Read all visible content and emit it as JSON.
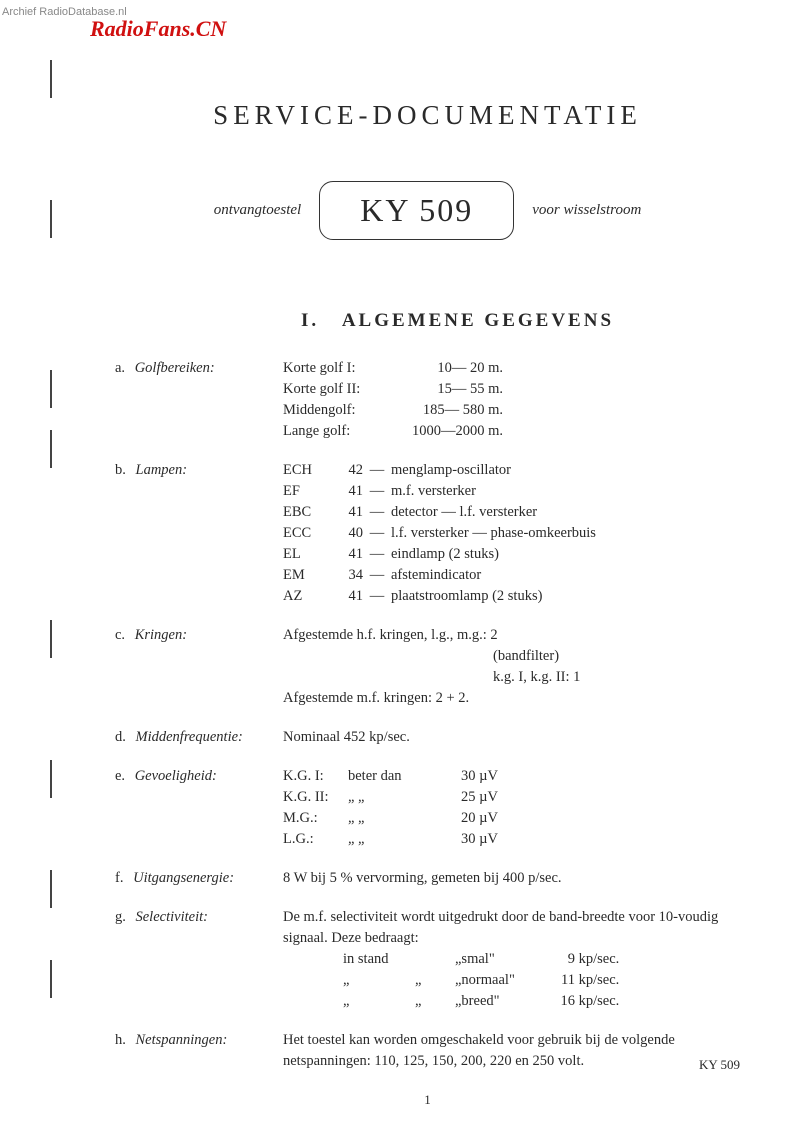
{
  "watermark_top": "Archief RadioDatabase.nl",
  "watermark_red": "RadioFans.CN",
  "title": "SERVICE-DOCUMENTATIE",
  "model_left": "ontvangtoestel",
  "model_box": "KY 509",
  "model_right": "voor wisselstroom",
  "section_num": "I.",
  "section_title": "ALGEMENE GEGEVENS",
  "specs": {
    "a": {
      "letter": "a.",
      "label": "Golfbereiken:",
      "bands": [
        {
          "name": "Korte golf I:",
          "range": "10—   20  m."
        },
        {
          "name": "Korte golf II:",
          "range": "15—   55  m."
        },
        {
          "name": "Middengolf:",
          "range": "185—  580  m."
        },
        {
          "name": "Lange golf:",
          "range": "1000—2000  m."
        }
      ]
    },
    "b": {
      "letter": "b.",
      "label": "Lampen:",
      "tubes": [
        {
          "code": "ECH",
          "num": "42",
          "desc": "menglamp-oscillator"
        },
        {
          "code": "EF",
          "num": "41",
          "desc": "m.f. versterker"
        },
        {
          "code": "EBC",
          "num": "41",
          "desc": "detector — l.f. versterker"
        },
        {
          "code": "ECC",
          "num": "40",
          "desc": "l.f. versterker — phase-omkeerbuis"
        },
        {
          "code": "EL",
          "num": "41",
          "desc": "eindlamp (2 stuks)"
        },
        {
          "code": "EM",
          "num": "34",
          "desc": "afstemindicator"
        },
        {
          "code": "AZ",
          "num": "41",
          "desc": "plaatstroomlamp (2 stuks)"
        }
      ]
    },
    "c": {
      "letter": "c.",
      "label": "Kringen:",
      "line1": "Afgestemde h.f. kringen, l.g., m.g.: 2",
      "line2": "(bandfilter)",
      "line3": "k.g. I, k.g. II: 1",
      "line4": "Afgestemde m.f. kringen: 2 + 2."
    },
    "d": {
      "letter": "d.",
      "label": "Middenfrequentie:",
      "text": "Nominaal 452 kp/sec."
    },
    "e": {
      "letter": "e.",
      "label": "Gevoeligheid:",
      "rows": [
        {
          "band": "K.G. I:",
          "text": "beter dan",
          "val": "30 µV"
        },
        {
          "band": "K.G. II:",
          "text": "„     „",
          "val": "25 µV"
        },
        {
          "band": "M.G.:",
          "text": "„     „",
          "val": "20 µV"
        },
        {
          "band": "L.G.:",
          "text": "„     „",
          "val": "30 µV"
        }
      ]
    },
    "f": {
      "letter": "f.",
      "label": "Uitgangsenergie:",
      "text": "8 W bij 5 % vervorming, gemeten bij 400 p/sec."
    },
    "g": {
      "letter": "g.",
      "label": "Selectiviteit:",
      "intro": "De m.f. selectiviteit wordt uitgedrukt door de band-breedte voor 10-voudig signaal. Deze bedraagt:",
      "rows": [
        {
          "a": "in stand",
          "b": "",
          "c": "„smal\"",
          "d": "9",
          "e": "kp/sec."
        },
        {
          "a": "„",
          "b": "„",
          "c": "„normaal\"",
          "d": "11",
          "e": "kp/sec."
        },
        {
          "a": "„",
          "b": "„",
          "c": "„breed\"",
          "d": "16",
          "e": "kp/sec."
        }
      ]
    },
    "h": {
      "letter": "h.",
      "label": "Netspanningen:",
      "text": "Het toestel kan worden omgeschakeld voor gebruik bij de volgende netspanningen: 110, 125, 150, 200, 220 en 250 volt."
    }
  },
  "pageno": "1",
  "footer": "KY 509",
  "colors": {
    "text": "#2a2a2a",
    "bg": "#ffffff",
    "red": "#d01010",
    "gray": "#888888"
  }
}
